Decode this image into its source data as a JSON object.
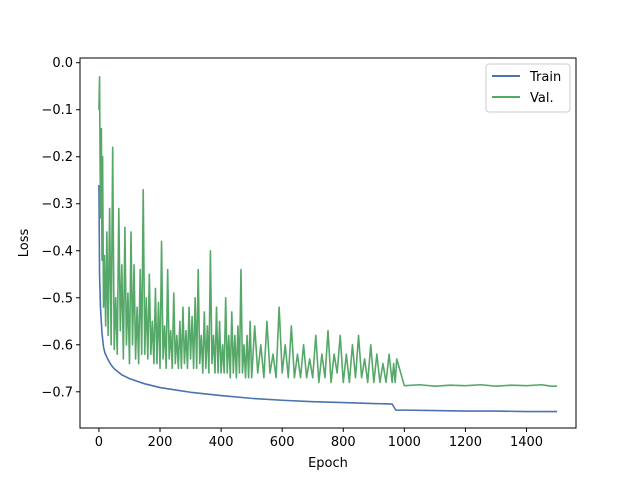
{
  "chart_data": {
    "type": "line",
    "xlabel": "Epoch",
    "ylabel": "Loss",
    "xlim": [
      -62,
      1562
    ],
    "ylim": [
      -0.777,
      0.01
    ],
    "xticks": [
      0,
      200,
      400,
      600,
      800,
      1000,
      1200,
      1400
    ],
    "yticks": [
      0.0,
      -0.1,
      -0.2,
      -0.3,
      -0.4,
      -0.5,
      -0.6,
      -0.7
    ],
    "xtick_labels": [
      "0",
      "200",
      "400",
      "600",
      "800",
      "1000",
      "1200",
      "1400"
    ],
    "ytick_labels": [
      "0.0",
      "−0.1",
      "−0.2",
      "−0.3",
      "−0.4",
      "−0.5",
      "−0.6",
      "−0.7"
    ],
    "grid": false,
    "legend_position": "top-right",
    "series": [
      {
        "name": "Train",
        "color": "#4c72b0",
        "x": [
          0,
          2,
          5,
          10,
          15,
          20,
          30,
          40,
          50,
          75,
          100,
          150,
          200,
          250,
          300,
          400,
          500,
          600,
          700,
          800,
          900,
          960,
          972,
          1000,
          1100,
          1200,
          1300,
          1400,
          1500
        ],
        "values": [
          -0.26,
          -0.45,
          -0.52,
          -0.575,
          -0.605,
          -0.618,
          -0.632,
          -0.643,
          -0.651,
          -0.664,
          -0.672,
          -0.683,
          -0.691,
          -0.696,
          -0.701,
          -0.708,
          -0.714,
          -0.718,
          -0.721,
          -0.723,
          -0.725,
          -0.726,
          -0.739,
          -0.739,
          -0.74,
          -0.741,
          -0.741,
          -0.742,
          -0.742
        ]
      },
      {
        "name": "Val.",
        "color": "#55a868",
        "x": [
          0,
          2,
          4,
          6,
          8,
          10,
          12,
          15,
          18,
          22,
          26,
          30,
          35,
          40,
          45,
          50,
          55,
          60,
          65,
          70,
          75,
          80,
          85,
          90,
          95,
          100,
          105,
          110,
          115,
          120,
          125,
          130,
          135,
          140,
          145,
          150,
          155,
          160,
          165,
          170,
          175,
          180,
          185,
          190,
          195,
          200,
          205,
          210,
          215,
          220,
          225,
          230,
          235,
          240,
          245,
          250,
          255,
          260,
          265,
          270,
          275,
          280,
          285,
          290,
          295,
          300,
          305,
          310,
          315,
          320,
          325,
          330,
          335,
          340,
          345,
          350,
          355,
          360,
          365,
          370,
          375,
          380,
          385,
          390,
          395,
          400,
          405,
          410,
          415,
          420,
          425,
          430,
          435,
          440,
          445,
          450,
          455,
          460,
          465,
          470,
          475,
          480,
          485,
          490,
          495,
          500,
          510,
          520,
          530,
          540,
          550,
          560,
          570,
          580,
          590,
          600,
          610,
          620,
          630,
          640,
          650,
          660,
          670,
          680,
          690,
          700,
          710,
          720,
          730,
          740,
          750,
          760,
          770,
          780,
          790,
          800,
          810,
          820,
          830,
          840,
          850,
          860,
          870,
          880,
          890,
          900,
          910,
          920,
          930,
          940,
          950,
          960,
          965,
          970,
          975,
          1000,
          1050,
          1100,
          1150,
          1200,
          1250,
          1300,
          1350,
          1400,
          1450,
          1480,
          1500
        ],
        "values": [
          -0.1,
          -0.03,
          -0.23,
          -0.33,
          -0.14,
          -0.42,
          -0.2,
          -0.52,
          -0.41,
          -0.56,
          -0.36,
          -0.58,
          -0.31,
          -0.6,
          -0.18,
          -0.61,
          -0.5,
          -0.62,
          -0.31,
          -0.57,
          -0.43,
          -0.63,
          -0.35,
          -0.6,
          -0.49,
          -0.64,
          -0.36,
          -0.6,
          -0.43,
          -0.63,
          -0.52,
          -0.64,
          -0.44,
          -0.62,
          -0.27,
          -0.62,
          -0.5,
          -0.63,
          -0.45,
          -0.62,
          -0.55,
          -0.64,
          -0.48,
          -0.64,
          -0.51,
          -0.65,
          -0.38,
          -0.63,
          -0.56,
          -0.65,
          -0.44,
          -0.63,
          -0.57,
          -0.65,
          -0.49,
          -0.64,
          -0.58,
          -0.65,
          -0.55,
          -0.65,
          -0.52,
          -0.64,
          -0.57,
          -0.65,
          -0.52,
          -0.63,
          -0.54,
          -0.65,
          -0.5,
          -0.65,
          -0.44,
          -0.64,
          -0.58,
          -0.66,
          -0.53,
          -0.65,
          -0.56,
          -0.66,
          -0.4,
          -0.64,
          -0.58,
          -0.66,
          -0.52,
          -0.66,
          -0.55,
          -0.66,
          -0.6,
          -0.66,
          -0.5,
          -0.66,
          -0.58,
          -0.67,
          -0.53,
          -0.66,
          -0.58,
          -0.67,
          -0.56,
          -0.66,
          -0.44,
          -0.66,
          -0.6,
          -0.67,
          -0.58,
          -0.67,
          -0.55,
          -0.67,
          -0.56,
          -0.66,
          -0.6,
          -0.67,
          -0.55,
          -0.66,
          -0.62,
          -0.67,
          -0.52,
          -0.66,
          -0.6,
          -0.67,
          -0.56,
          -0.67,
          -0.62,
          -0.67,
          -0.6,
          -0.67,
          -0.63,
          -0.67,
          -0.58,
          -0.68,
          -0.62,
          -0.67,
          -0.57,
          -0.68,
          -0.62,
          -0.66,
          -0.58,
          -0.68,
          -0.62,
          -0.68,
          -0.6,
          -0.67,
          -0.58,
          -0.67,
          -0.63,
          -0.68,
          -0.6,
          -0.68,
          -0.62,
          -0.68,
          -0.64,
          -0.68,
          -0.62,
          -0.68,
          -0.64,
          -0.68,
          -0.63,
          -0.687,
          -0.685,
          -0.688,
          -0.686,
          -0.687,
          -0.685,
          -0.688,
          -0.686,
          -0.687,
          -0.685,
          -0.688,
          -0.688
        ]
      }
    ]
  }
}
